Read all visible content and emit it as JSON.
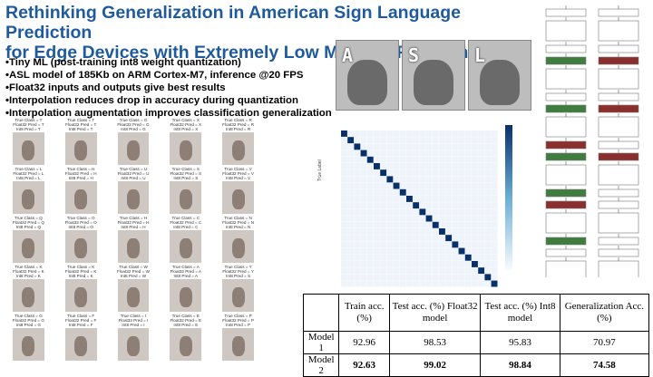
{
  "slide": {
    "title_line1": "Rethinking Generalization in American Sign Language Prediction",
    "title_line2": "for Edge Devices with Extremely Low Memory Footprint",
    "bullets": [
      "Tiny ML (post-training int8 weight quantization)",
      "ASL model of 185Kb on ARM Cortex-M7, inference @20 FPS",
      "Float32 inputs and outputs give best results",
      "Interpolation reduces drop in accuracy during quantization",
      "Interpolation augmentation improves classification generalization"
    ],
    "hand_letters": [
      "A",
      "S",
      "L"
    ],
    "prediction_grid": [
      [
        {
          "true": "T",
          "f": "T",
          "i": "T"
        },
        {
          "true": "T",
          "f": "T",
          "i": "T"
        },
        {
          "true": "G",
          "f": "G",
          "i": "G"
        },
        {
          "true": "X",
          "f": "X",
          "i": "X"
        },
        {
          "true": "R",
          "f": "R",
          "i": "R"
        }
      ],
      [
        {
          "true": "L",
          "f": "L",
          "i": "L"
        },
        {
          "true": "H",
          "f": "H",
          "i": "H"
        },
        {
          "true": "U",
          "f": "U",
          "i": "U"
        },
        {
          "true": "S",
          "f": "S",
          "i": "S"
        },
        {
          "true": "V",
          "f": "V",
          "i": "V"
        }
      ],
      [
        {
          "true": "Q",
          "f": "Q",
          "i": "Q"
        },
        {
          "true": "O",
          "f": "O",
          "i": "O"
        },
        {
          "true": "H",
          "f": "H",
          "i": "H"
        },
        {
          "true": "C",
          "f": "C",
          "i": "C"
        },
        {
          "true": "N",
          "f": "N",
          "i": "N"
        }
      ],
      [
        {
          "true": "K",
          "f": "K",
          "i": "K"
        },
        {
          "true": "K",
          "f": "K",
          "i": "K"
        },
        {
          "true": "W",
          "f": "W",
          "i": "W"
        },
        {
          "true": "A",
          "f": "A",
          "i": "A"
        },
        {
          "true": "Y",
          "f": "Y",
          "i": "S"
        }
      ],
      [
        {
          "true": "G",
          "f": "G",
          "i": "G"
        },
        {
          "true": "F",
          "f": "F",
          "i": "F"
        },
        {
          "true": "I",
          "f": "I",
          "i": "I"
        },
        {
          "true": "E",
          "f": "E",
          "i": "E"
        },
        {
          "true": "P",
          "f": "P",
          "i": "P"
        }
      ]
    ],
    "caption_labels": {
      "true": "True Class = ",
      "float": "Float32 Pred = ",
      "int8": "Int8 Pred = "
    },
    "confusion_ylabel": "True Label"
  },
  "results_table": {
    "headers": [
      "",
      "Train acc. (%)",
      "Test acc. (%) Float32 model",
      "Test acc. (%) Int8 model",
      "Generalization Acc. (%)"
    ],
    "rows": [
      [
        "Model 1",
        "92.96",
        "98.53",
        "95.83",
        "70.97"
      ],
      [
        "Model 2",
        "92.63",
        "99.02",
        "98.84",
        "74.58"
      ]
    ]
  },
  "colors": {
    "title": "#1f5b9c",
    "heatmap_high": "#08306b"
  }
}
